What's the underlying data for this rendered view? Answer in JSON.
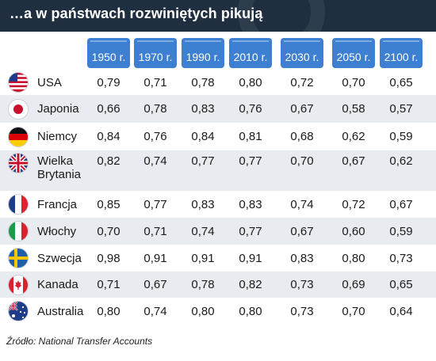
{
  "title": "…a w państwach rozwiniętych pikują",
  "source": "Źródło: National Transfer Accounts",
  "colors": {
    "header_bg": "#1f2f3f",
    "year_tag": "#3d7fd0",
    "row_shade": "#e8ebef"
  },
  "chart_data": {
    "type": "table",
    "columns": [
      "1950 r.",
      "1970 r.",
      "1990 r.",
      "2010 r.",
      "2030 r.",
      "2050 r.",
      "2100 r."
    ],
    "rows": [
      {
        "country": "USA",
        "flag_icon": "usa-flag-icon",
        "values": [
          "0,79",
          "0,71",
          "0,78",
          "0,80",
          "0,72",
          "0,70",
          "0,65"
        ]
      },
      {
        "country": "Japonia",
        "flag_icon": "japan-flag-icon",
        "values": [
          "0,66",
          "0,78",
          "0,83",
          "0,76",
          "0,67",
          "0,58",
          "0,57"
        ]
      },
      {
        "country": "Niemcy",
        "flag_icon": "germany-flag-icon",
        "values": [
          "0,84",
          "0,76",
          "0,84",
          "0,81",
          "0,68",
          "0,62",
          "0,59"
        ]
      },
      {
        "country": "Wielka\nBrytania",
        "flag_icon": "uk-flag-icon",
        "values": [
          "0,82",
          "0,74",
          "0,77",
          "0,77",
          "0,70",
          "0,67",
          "0,62"
        ]
      },
      {
        "country": "Francja",
        "flag_icon": "france-flag-icon",
        "values": [
          "0,85",
          "0,77",
          "0,83",
          "0,83",
          "0,74",
          "0,72",
          "0,67"
        ]
      },
      {
        "country": "Włochy",
        "flag_icon": "italy-flag-icon",
        "values": [
          "0,70",
          "0,71",
          "0,74",
          "0,77",
          "0,67",
          "0,60",
          "0,59"
        ]
      },
      {
        "country": "Szwecja",
        "flag_icon": "sweden-flag-icon",
        "values": [
          "0,98",
          "0,91",
          "0,91",
          "0,91",
          "0,83",
          "0,80",
          "0,73"
        ]
      },
      {
        "country": "Kanada",
        "flag_icon": "canada-flag-icon",
        "values": [
          "0,71",
          "0,67",
          "0,78",
          "0,82",
          "0,73",
          "0,69",
          "0,65"
        ]
      },
      {
        "country": "Australia",
        "flag_icon": "australia-flag-icon",
        "values": [
          "0,80",
          "0,74",
          "0,80",
          "0,80",
          "0,73",
          "0,70",
          "0,64"
        ]
      }
    ]
  }
}
